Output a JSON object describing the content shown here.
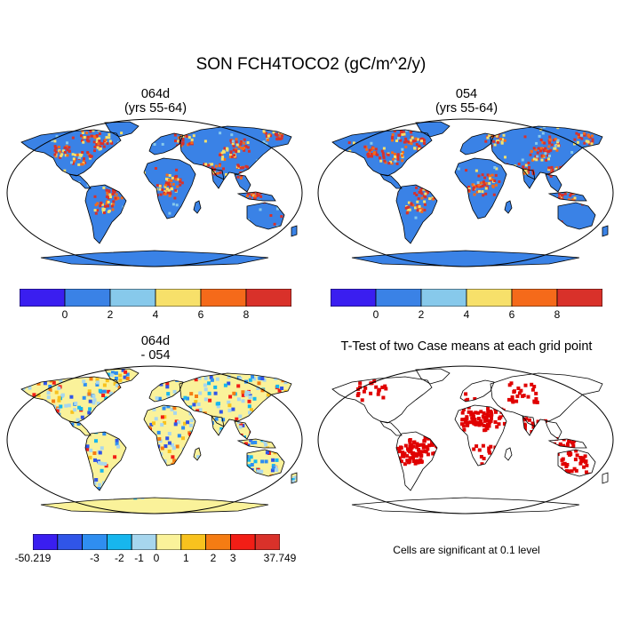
{
  "figure": {
    "title": "SON FCH4TOCO2 (gC/m^2/y)"
  },
  "panels": [
    {
      "id": "case1",
      "title_line1": "064d",
      "title_line2": "(yrs 55-64)"
    },
    {
      "id": "case2",
      "title_line1": "054",
      "title_line2": "(yrs 55-64)"
    },
    {
      "id": "diff",
      "title_line1": "064d",
      "title_line2": "- 054"
    },
    {
      "id": "ttest",
      "title_line1": "T-Test of two Case means at each grid point",
      "note": "Cells are significant at 0.1 level"
    }
  ],
  "colorbars": {
    "abs": {
      "colors": [
        "#3a1ef0",
        "#3a82e6",
        "#87c9eb",
        "#f7e06a",
        "#f56a1a",
        "#d9312a"
      ],
      "labels": [
        "0",
        "2",
        "4",
        "6",
        "8"
      ]
    },
    "diff": {
      "colors": [
        "#3a1ef0",
        "#3055e8",
        "#2f8ef0",
        "#17b6ee",
        "#a7d6ee",
        "#faf29a",
        "#f8c21e",
        "#f57c13",
        "#f21e16",
        "#d9312a"
      ],
      "labels": [
        "-50.219",
        "-3",
        "-2",
        "-1",
        "0",
        "1",
        "2",
        "3",
        "37.749"
      ]
    }
  },
  "map_colors": {
    "ocean": "#ffffff",
    "land_abs": "#3a82e6",
    "land_diff": "#faf29a",
    "sig": "#e00000"
  }
}
